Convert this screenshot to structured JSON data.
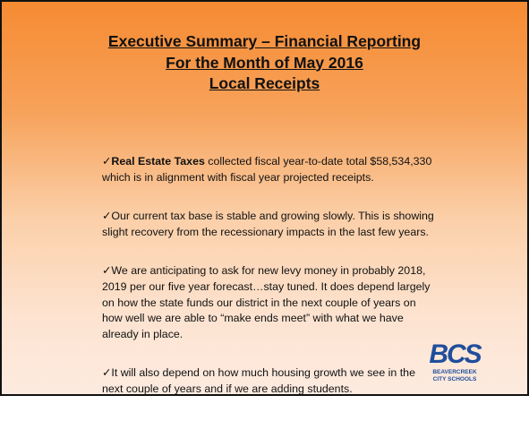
{
  "title": {
    "lines": [
      "Executive Summary – Financial Reporting",
      "For the Month of May 2016",
      "Local Receipts"
    ]
  },
  "bullet": "✓",
  "items": [
    {
      "bold": "Real Estate Taxes",
      "text": " collected fiscal year-to-date total $58,534,330 which is in alignment with fiscal year projected receipts."
    },
    {
      "text": "Our current tax base is stable and growing slowly.  This is showing slight recovery from the recessionary impacts in the last few years."
    },
    {
      "text": "We are anticipating to ask for new levy money in probably 2018, 2019 per our five year forecast…stay tuned.   It does depend largely on how the state funds our district in the next couple of years on how well we are able to “make ends meet” with what we have already in place."
    },
    {
      "text": "It will also depend on how much housing growth we see in the next couple of years and if we are adding students."
    }
  ],
  "logo": {
    "mark": "BCS",
    "name_lines": [
      "BEAVERCREEK",
      "CITY SCHOOLS"
    ]
  }
}
